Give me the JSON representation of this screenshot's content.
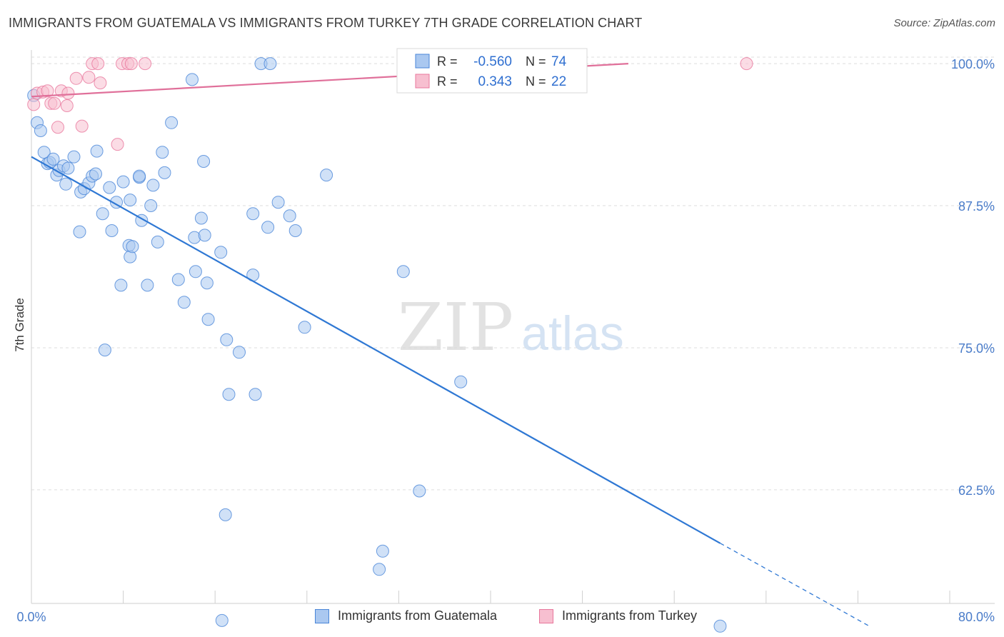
{
  "title": "IMMIGRANTS FROM GUATEMALA VS IMMIGRANTS FROM TURKEY 7TH GRADE CORRELATION CHART",
  "source": "Source: ZipAtlas.com",
  "watermark": {
    "zip": "ZIP",
    "atlas": "atlas"
  },
  "colors": {
    "blue_fill": "#aac8f0",
    "blue_stroke": "#4a86d8",
    "blue_line": "#2f78d4",
    "pink_fill": "#f7bfd0",
    "pink_stroke": "#e8779c",
    "pink_line": "#e0709a",
    "axis_text": "#4a7cc9",
    "grid": "#dedede"
  },
  "legend": {
    "rows": [
      {
        "r_label": "R =",
        "r_value": "-0.560",
        "n_label": "N =",
        "n_value": "74"
      },
      {
        "r_label": "R =",
        "r_value": "0.343",
        "n_label": "N =",
        "n_value": "22"
      }
    ]
  },
  "chart_data": {
    "type": "scatter",
    "xlabel": "",
    "ylabel": "7th Grade",
    "xlim": [
      0,
      80
    ],
    "ylim": [
      52.5,
      101.2
    ],
    "x_tick_labels": [
      "0.0%",
      "80.0%"
    ],
    "y_ticks": [
      100,
      87.5,
      75,
      62.5
    ],
    "y_tick_labels": [
      "100.0%",
      "87.5%",
      "75.0%",
      "62.5%"
    ],
    "grid": true,
    "series": [
      {
        "name": "Immigrants from Guatemala",
        "color_key": "blue",
        "points": [
          [
            0.2,
            97.2
          ],
          [
            0.5,
            94.8
          ],
          [
            0.8,
            94.1
          ],
          [
            1.1,
            92.2
          ],
          [
            1.4,
            91.2
          ],
          [
            1.6,
            91.3
          ],
          [
            1.9,
            91.6
          ],
          [
            2.2,
            90.2
          ],
          [
            2.4,
            90.6
          ],
          [
            2.8,
            91.0
          ],
          [
            3.2,
            90.8
          ],
          [
            3.0,
            89.4
          ],
          [
            3.7,
            91.8
          ],
          [
            4.3,
            88.7
          ],
          [
            4.6,
            89.0
          ],
          [
            5.0,
            89.5
          ],
          [
            5.3,
            90.1
          ],
          [
            5.6,
            90.3
          ],
          [
            5.7,
            92.3
          ],
          [
            6.2,
            86.8
          ],
          [
            6.8,
            89.1
          ],
          [
            7.4,
            87.8
          ],
          [
            8.0,
            89.6
          ],
          [
            8.6,
            88.0
          ],
          [
            9.4,
            90.0
          ],
          [
            9.6,
            86.2
          ],
          [
            9.4,
            90.1
          ],
          [
            10.4,
            87.5
          ],
          [
            10.6,
            89.3
          ],
          [
            11.4,
            92.2
          ],
          [
            11.6,
            90.4
          ],
          [
            12.2,
            94.8
          ],
          [
            4.2,
            85.2
          ],
          [
            7.0,
            85.3
          ],
          [
            8.5,
            84.0
          ],
          [
            8.6,
            83.0
          ],
          [
            8.8,
            83.9
          ],
          [
            7.8,
            80.5
          ],
          [
            10.1,
            80.5
          ],
          [
            11.0,
            84.3
          ],
          [
            12.8,
            81.0
          ],
          [
            14.3,
            81.7
          ],
          [
            14.2,
            84.7
          ],
          [
            15.1,
            84.9
          ],
          [
            13.3,
            79.0
          ],
          [
            15.3,
            80.7
          ],
          [
            15.4,
            77.5
          ],
          [
            14.8,
            86.4
          ],
          [
            15.0,
            91.4
          ],
          [
            16.5,
            83.4
          ],
          [
            17.0,
            75.7
          ],
          [
            18.1,
            74.6
          ],
          [
            19.3,
            81.4
          ],
          [
            19.3,
            86.8
          ],
          [
            20.6,
            85.6
          ],
          [
            21.5,
            87.8
          ],
          [
            22.5,
            86.6
          ],
          [
            23.0,
            85.3
          ],
          [
            17.2,
            70.9
          ],
          [
            19.5,
            70.9
          ],
          [
            23.8,
            76.8
          ],
          [
            25.7,
            90.2
          ],
          [
            32.4,
            81.7
          ],
          [
            37.4,
            72.0
          ],
          [
            6.4,
            74.8
          ],
          [
            16.9,
            60.3
          ],
          [
            30.6,
            57.1
          ],
          [
            30.3,
            55.5
          ],
          [
            33.8,
            62.4
          ],
          [
            16.6,
            51.0
          ],
          [
            20.0,
            100
          ],
          [
            20.8,
            100
          ],
          [
            14.0,
            98.6
          ],
          [
            60.0,
            50.5
          ]
        ]
      },
      {
        "name": "Immigrants from Turkey",
        "color_key": "pink",
        "points": [
          [
            0.2,
            96.4
          ],
          [
            0.5,
            97.4
          ],
          [
            1.0,
            97.5
          ],
          [
            1.4,
            97.6
          ],
          [
            1.7,
            96.5
          ],
          [
            2.0,
            96.5
          ],
          [
            2.3,
            94.4
          ],
          [
            2.6,
            97.6
          ],
          [
            3.2,
            97.4
          ],
          [
            3.1,
            96.3
          ],
          [
            3.9,
            98.7
          ],
          [
            4.4,
            94.5
          ],
          [
            5.0,
            98.8
          ],
          [
            5.3,
            100
          ],
          [
            5.8,
            100
          ],
          [
            6.0,
            98.3
          ],
          [
            7.5,
            92.9
          ],
          [
            7.9,
            100
          ],
          [
            8.4,
            100
          ],
          [
            8.7,
            100
          ],
          [
            9.9,
            100
          ],
          [
            62.3,
            100
          ]
        ]
      }
    ],
    "trend_lines": [
      {
        "series": "Immigrants from Guatemala",
        "start": [
          0,
          91.8
        ],
        "end_solid": [
          60.0,
          57.8
        ],
        "end_dashed": [
          73.0,
          50.5
        ]
      },
      {
        "series": "Immigrants from Turkey",
        "start": [
          0,
          97.1
        ],
        "end_solid": [
          52.0,
          100
        ]
      }
    ]
  },
  "bottom_legend": [
    {
      "label": "Immigrants from Guatemala"
    },
    {
      "label": "Immigrants from Turkey"
    }
  ]
}
